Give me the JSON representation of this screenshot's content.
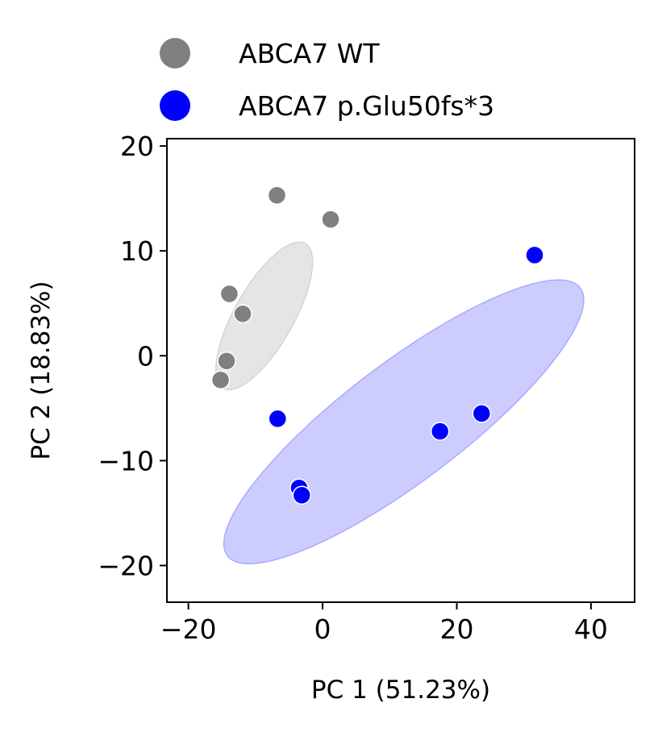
{
  "chart_data": {
    "type": "scatter",
    "xlabel": "PC 1 (51.23%)",
    "ylabel": "PC 2 (18.83%)",
    "xlim": [
      -23.2,
      46.5
    ],
    "ylim": [
      -23.5,
      20.7
    ],
    "xticks": [
      -20,
      0,
      20,
      40
    ],
    "yticks": [
      -20,
      -10,
      0,
      10,
      20
    ],
    "xtick_labels": [
      "−20",
      "0",
      "20",
      "40"
    ],
    "ytick_labels": [
      "−20",
      "−10",
      "0",
      "10",
      "20"
    ],
    "grid": false,
    "legend_position": "top-left",
    "series": [
      {
        "name": "ABCA7 WT",
        "color": "#808080",
        "points": [
          {
            "x": -6.8,
            "y": 15.3
          },
          {
            "x": 1.2,
            "y": 13.0
          },
          {
            "x": -13.9,
            "y": 5.9
          },
          {
            "x": -11.9,
            "y": 4.0
          },
          {
            "x": -14.3,
            "y": -0.5
          },
          {
            "x": -15.2,
            "y": -2.3
          }
        ],
        "ellipse": {
          "cx": -8.7,
          "cy": 3.8,
          "rx": 12.4,
          "ry": 4.4,
          "angle_deg": 60.5,
          "fill": "#e5e5e5",
          "stroke": "#d4d4d4"
        }
      },
      {
        "name": "ABCA7 p.Glu50fs*3",
        "color": "#0000ff",
        "points": [
          {
            "x": 31.6,
            "y": 9.6
          },
          {
            "x": -6.7,
            "y": -6.0
          },
          {
            "x": 17.5,
            "y": -7.2
          },
          {
            "x": 23.7,
            "y": -5.5
          },
          {
            "x": -3.5,
            "y": -12.6
          },
          {
            "x": -3.1,
            "y": -13.3
          }
        ],
        "ellipse": {
          "cx": 12.1,
          "cy": -6.3,
          "rx": 33.0,
          "ry": 8.8,
          "angle_deg": 37.2,
          "fill": "#ccccff",
          "stroke": "#aaaaff"
        }
      }
    ]
  }
}
